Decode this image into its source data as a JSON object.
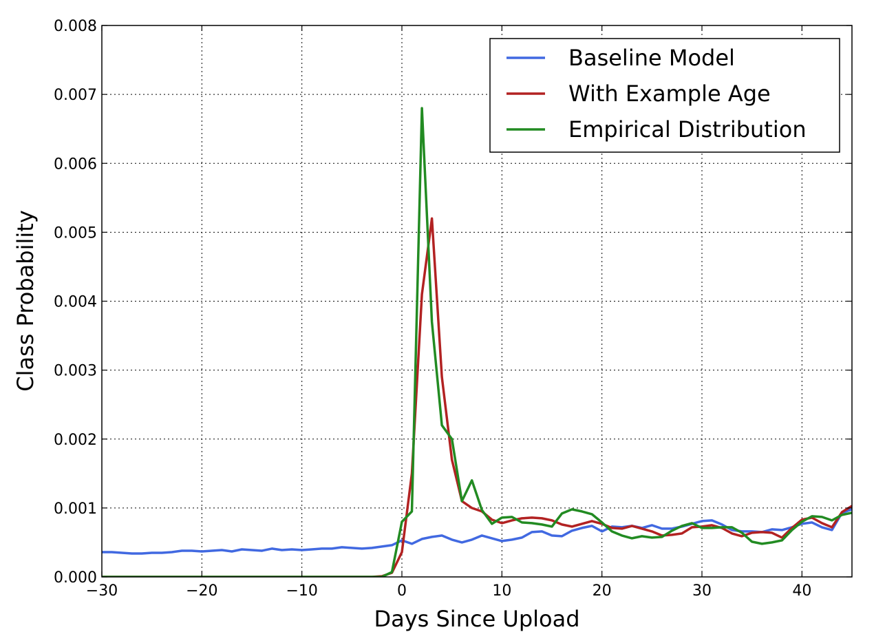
{
  "chart_data": {
    "type": "line",
    "title": "",
    "xlabel": "Days Since Upload",
    "ylabel": "Class Probability",
    "xlim": [
      -30,
      45
    ],
    "ylim": [
      0.0,
      0.008
    ],
    "xticks": [
      -30,
      -20,
      -10,
      0,
      10,
      20,
      30,
      40
    ],
    "xtick_labels": [
      "−30",
      "−20",
      "−10",
      "0",
      "10",
      "20",
      "30",
      "40"
    ],
    "yticks": [
      0.0,
      0.001,
      0.002,
      0.003,
      0.004,
      0.005,
      0.006,
      0.007,
      0.008
    ],
    "ytick_labels": [
      "0.000",
      "0.001",
      "0.002",
      "0.003",
      "0.004",
      "0.005",
      "0.006",
      "0.007",
      "0.008"
    ],
    "grid": true,
    "legend_position": "top-right",
    "series": [
      {
        "name": "Baseline Model",
        "color": "#4169e1",
        "x": [
          -30,
          -29,
          -28,
          -27,
          -26,
          -25,
          -24,
          -23,
          -22,
          -21,
          -20,
          -19,
          -18,
          -17,
          -16,
          -15,
          -14,
          -13,
          -12,
          -11,
          -10,
          -9,
          -8,
          -7,
          -6,
          -5,
          -4,
          -3,
          -2,
          -1,
          0,
          1,
          2,
          3,
          4,
          5,
          6,
          7,
          8,
          9,
          10,
          11,
          12,
          13,
          14,
          15,
          16,
          17,
          18,
          19,
          20,
          21,
          22,
          23,
          24,
          25,
          26,
          27,
          28,
          29,
          30,
          31,
          32,
          33,
          34,
          35,
          36,
          37,
          38,
          39,
          40,
          41,
          42,
          43,
          44,
          45
        ],
        "y": [
          0.00036,
          0.00036,
          0.00035,
          0.00034,
          0.00034,
          0.00035,
          0.00035,
          0.00036,
          0.00038,
          0.00038,
          0.00037,
          0.00038,
          0.00039,
          0.00037,
          0.0004,
          0.00039,
          0.00038,
          0.00041,
          0.00039,
          0.0004,
          0.00039,
          0.0004,
          0.00041,
          0.00041,
          0.00043,
          0.00042,
          0.00041,
          0.00042,
          0.00044,
          0.00046,
          0.00053,
          0.00048,
          0.00055,
          0.00058,
          0.0006,
          0.00054,
          0.0005,
          0.00054,
          0.0006,
          0.00056,
          0.00052,
          0.00054,
          0.00057,
          0.00065,
          0.00066,
          0.0006,
          0.00059,
          0.00067,
          0.00071,
          0.00074,
          0.00066,
          0.00073,
          0.00072,
          0.00074,
          0.00071,
          0.00075,
          0.0007,
          0.0007,
          0.00073,
          0.00077,
          0.00081,
          0.00082,
          0.00076,
          0.00068,
          0.00066,
          0.00066,
          0.00065,
          0.00069,
          0.00068,
          0.00072,
          0.00077,
          0.00079,
          0.00072,
          0.00068,
          0.00093,
          0.00098
        ]
      },
      {
        "name": "With Example Age",
        "color": "#b22222",
        "x": [
          -30,
          -29,
          -28,
          -27,
          -26,
          -25,
          -24,
          -23,
          -22,
          -21,
          -20,
          -19,
          -18,
          -17,
          -16,
          -15,
          -14,
          -13,
          -12,
          -11,
          -10,
          -9,
          -8,
          -7,
          -6,
          -5,
          -4,
          -3,
          -2,
          -1,
          0,
          1,
          2,
          3,
          4,
          5,
          6,
          7,
          8,
          9,
          10,
          11,
          12,
          13,
          14,
          15,
          16,
          17,
          18,
          19,
          20,
          21,
          22,
          23,
          24,
          25,
          26,
          27,
          28,
          29,
          30,
          31,
          32,
          33,
          34,
          35,
          36,
          37,
          38,
          39,
          40,
          41,
          42,
          43,
          44,
          45
        ],
        "y": [
          0,
          0,
          0,
          0,
          0,
          0,
          0,
          0,
          0,
          0,
          0,
          0,
          0,
          0,
          0,
          0,
          0,
          0,
          0,
          0,
          0,
          0,
          0,
          0,
          0,
          0,
          0,
          0,
          1e-05,
          6e-05,
          0.00036,
          0.0015,
          0.0041,
          0.0052,
          0.0029,
          0.0017,
          0.0011,
          0.001,
          0.00095,
          0.00083,
          0.00078,
          0.00082,
          0.00085,
          0.00086,
          0.00085,
          0.00082,
          0.00076,
          0.00073,
          0.00077,
          0.00081,
          0.00077,
          0.00071,
          0.0007,
          0.00074,
          0.0007,
          0.00066,
          0.0006,
          0.00061,
          0.00063,
          0.00072,
          0.00073,
          0.00075,
          0.00071,
          0.00063,
          0.00059,
          0.00064,
          0.00065,
          0.00064,
          0.00057,
          0.00071,
          0.00083,
          0.00086,
          0.00078,
          0.00072,
          0.00094,
          0.00103
        ]
      },
      {
        "name": "Empirical Distribution",
        "color": "#228b22",
        "x": [
          -30,
          -29,
          -28,
          -27,
          -26,
          -25,
          -24,
          -23,
          -22,
          -21,
          -20,
          -19,
          -18,
          -17,
          -16,
          -15,
          -14,
          -13,
          -12,
          -11,
          -10,
          -9,
          -8,
          -7,
          -6,
          -5,
          -4,
          -3,
          -2,
          -1,
          0,
          1,
          2,
          3,
          4,
          5,
          6,
          7,
          8,
          9,
          10,
          11,
          12,
          13,
          14,
          15,
          16,
          17,
          18,
          19,
          20,
          21,
          22,
          23,
          24,
          25,
          26,
          27,
          28,
          29,
          30,
          31,
          32,
          33,
          34,
          35,
          36,
          37,
          38,
          39,
          40,
          41,
          42,
          43,
          44,
          45
        ],
        "y": [
          0,
          0,
          0,
          0,
          0,
          0,
          0,
          0,
          0,
          0,
          0,
          0,
          0,
          0,
          0,
          0,
          0,
          0,
          0,
          0,
          0,
          0,
          0,
          0,
          0,
          0,
          0,
          0,
          0,
          7e-05,
          0.0008,
          0.00095,
          0.0068,
          0.0037,
          0.0022,
          0.002,
          0.0011,
          0.0014,
          0.00097,
          0.00077,
          0.00086,
          0.00087,
          0.00079,
          0.00078,
          0.00076,
          0.00073,
          0.00092,
          0.00098,
          0.00095,
          0.00091,
          0.00079,
          0.00066,
          0.0006,
          0.00056,
          0.00059,
          0.00057,
          0.00058,
          0.00067,
          0.00074,
          0.00078,
          0.00071,
          0.00071,
          0.00072,
          0.00072,
          0.00064,
          0.00051,
          0.00048,
          0.0005,
          0.00053,
          0.00068,
          0.0008,
          0.00088,
          0.00087,
          0.00082,
          0.0009,
          0.00093
        ]
      }
    ]
  }
}
